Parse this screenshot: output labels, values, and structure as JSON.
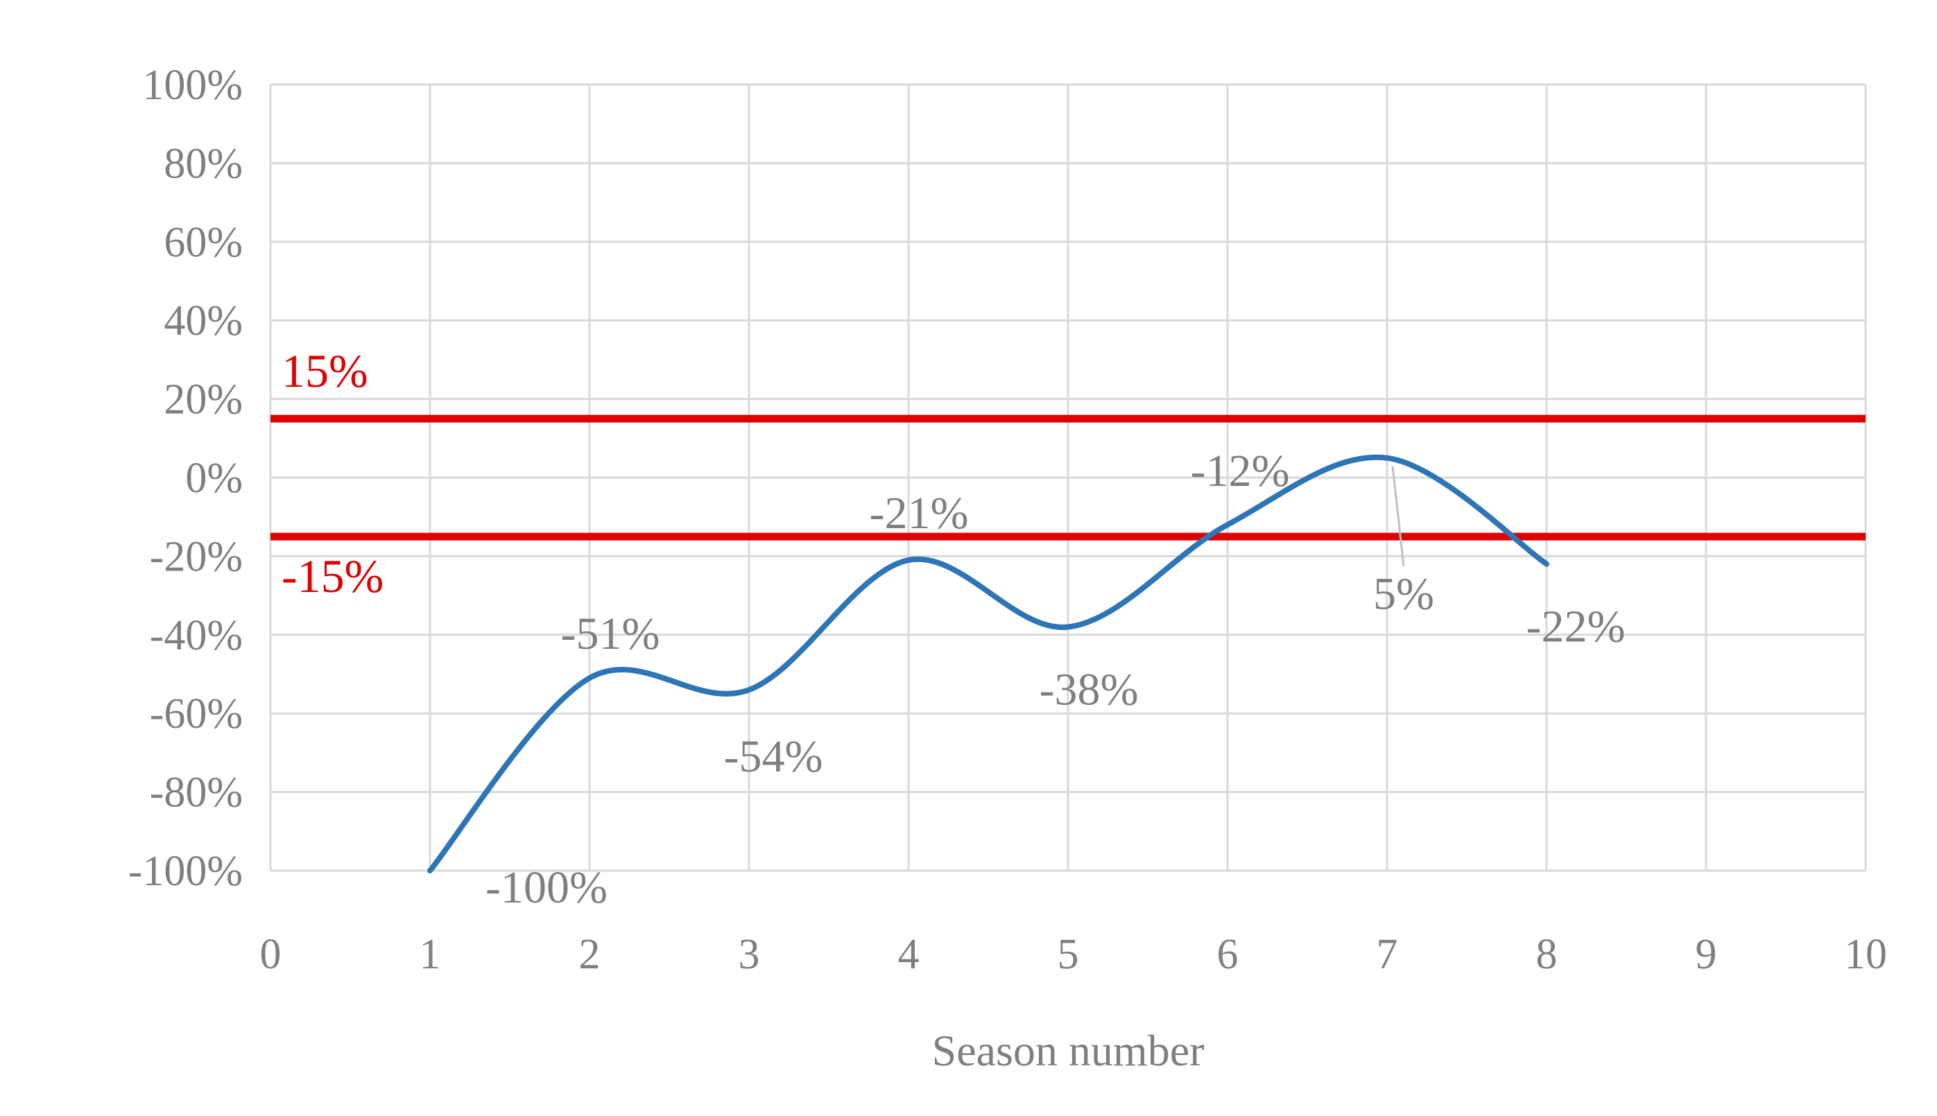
{
  "chart_data": {
    "type": "line",
    "title": "",
    "xlabel": "Season number",
    "ylabel": "",
    "x": [
      1,
      2,
      3,
      4,
      5,
      6,
      7,
      8
    ],
    "values": [
      -100,
      -51,
      -54,
      -21,
      -38,
      -12,
      5,
      -22
    ],
    "point_labels": [
      "-100%",
      "-51%",
      "-54%",
      "-21%",
      "-38%",
      "-12%",
      "5%",
      "-22%"
    ],
    "xlim": [
      0,
      10
    ],
    "ylim": [
      -100,
      100
    ],
    "x_tick_labels": [
      "0",
      "1",
      "2",
      "3",
      "4",
      "5",
      "6",
      "7",
      "8",
      "9",
      "10"
    ],
    "y_tick_values": [
      100,
      80,
      60,
      40,
      20,
      0,
      -20,
      -40,
      -60,
      -80,
      -100
    ],
    "y_tick_labels": [
      "100%",
      "80%",
      "60%",
      "40%",
      "20%",
      "0%",
      "-20%",
      "-40%",
      "-60%",
      "-80%",
      "-100%"
    ],
    "reference_lines": [
      {
        "value": 15,
        "label": "15%"
      },
      {
        "value": -15,
        "label": "-15%"
      }
    ],
    "grid": true,
    "legend": "none",
    "line_style": "smooth",
    "colors": {
      "series": "#2e75b6",
      "reference": "#e00000",
      "grid": "#d9d9d9",
      "text": "#7f7f7f",
      "leader": "#bfbfbf",
      "background": "#ffffff"
    }
  }
}
